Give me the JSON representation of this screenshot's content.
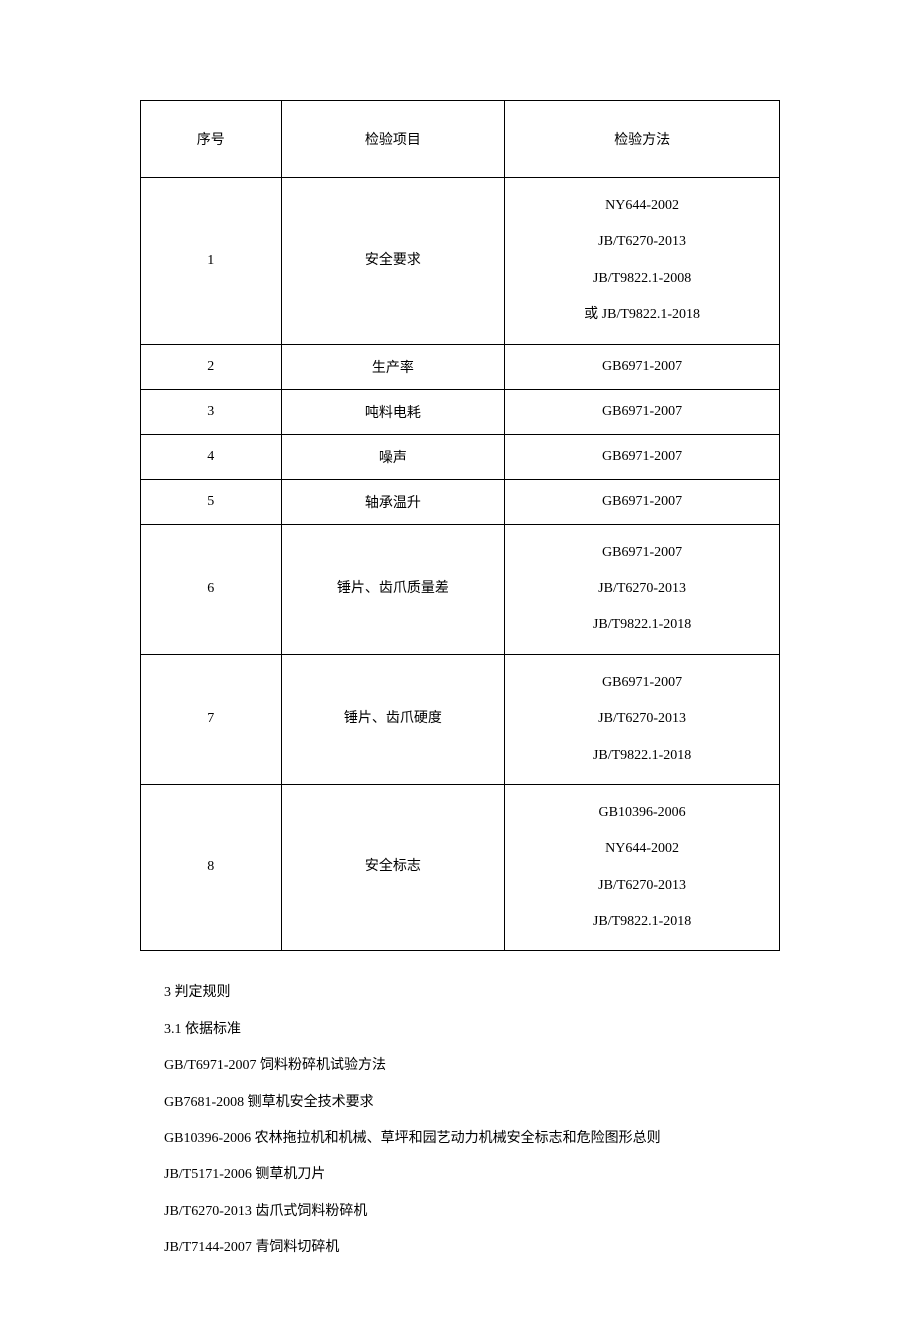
{
  "table": {
    "columns": [
      "序号",
      "检验项目",
      "检验方法"
    ],
    "col_widths": [
      "22%",
      "35%",
      "43%"
    ],
    "border_color": "#000000",
    "background_color": "#ffffff",
    "font_family": "SimSun",
    "header_fontsize": 14,
    "cell_fontsize": 14,
    "rows": [
      {
        "seq": "1",
        "item": "安全要求",
        "methods": [
          "NY644-2002",
          "JB/T6270-2013",
          "JB/T9822.1-2008",
          "或 JB/T9822.1-2018"
        ]
      },
      {
        "seq": "2",
        "item": "生产率",
        "methods": [
          "GB6971-2007"
        ]
      },
      {
        "seq": "3",
        "item": "吨料电耗",
        "methods": [
          "GB6971-2007"
        ]
      },
      {
        "seq": "4",
        "item": "噪声",
        "methods": [
          "GB6971-2007"
        ]
      },
      {
        "seq": "5",
        "item": "轴承温升",
        "methods": [
          "GB6971-2007"
        ]
      },
      {
        "seq": "6",
        "item": "锤片、齿爪质量差",
        "methods": [
          "GB6971-2007",
          "JB/T6270-2013",
          "JB/T9822.1-2018"
        ]
      },
      {
        "seq": "7",
        "item": "锤片、齿爪硬度",
        "methods": [
          "GB6971-2007",
          "JB/T6270-2013",
          "JB/T9822.1-2018"
        ]
      },
      {
        "seq": "8",
        "item": "安全标志",
        "methods": [
          "GB10396-2006",
          "NY644-2002",
          "JB/T6270-2013",
          "JB/T9822.1-2018"
        ]
      }
    ]
  },
  "paragraphs": [
    "3 判定规则",
    "3.1 依据标准",
    "GB/T6971-2007 饲料粉碎机试验方法",
    "GB7681-2008 铡草机安全技术要求",
    "GB10396-2006 农林拖拉机和机械、草坪和园艺动力机械安全标志和危险图形总则",
    "JB/T5171-2006 铡草机刀片",
    "JB/T6270-2013 齿爪式饲料粉碎机",
    "JB/T7144-2007 青饲料切碎机"
  ]
}
